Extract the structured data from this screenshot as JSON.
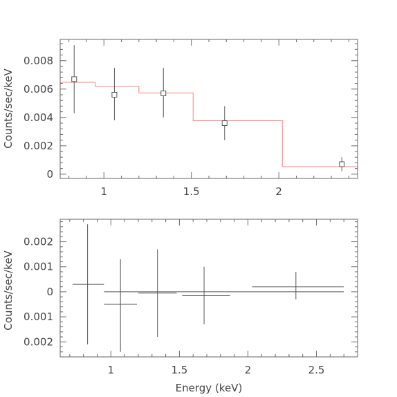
{
  "chart_data": [
    {
      "type": "step-with-errorbars",
      "xlim": [
        0.75,
        2.45
      ],
      "ylim": [
        -0.0003,
        0.0095
      ],
      "x_ticks": [
        1,
        1.5,
        2
      ],
      "x_tick_labels": [
        "1",
        "1.5",
        "2"
      ],
      "y_ticks": [
        0,
        0.002,
        0.004,
        0.006,
        0.008
      ],
      "y_tick_labels": [
        "0",
        "0.002",
        "0.004",
        "0.006",
        "0.008"
      ],
      "ylabel": "Counts/sec/keV",
      "xlabel": "",
      "model_color": "#ff8080",
      "data_color": "#555555",
      "model_steps": [
        {
          "x0": 0.75,
          "x1": 0.95,
          "y": 0.00648
        },
        {
          "x0": 0.95,
          "x1": 1.2,
          "y": 0.00618
        },
        {
          "x0": 1.2,
          "x1": 1.51,
          "y": 0.00573
        },
        {
          "x0": 1.51,
          "x1": 2.02,
          "y": 0.00378
        },
        {
          "x0": 2.02,
          "x1": 2.45,
          "y": 0.00053
        }
      ],
      "data_points": [
        {
          "x": 0.83,
          "y": 0.0067,
          "ylo": 0.0043,
          "yhi": 0.0091
        },
        {
          "x": 1.06,
          "y": 0.0056,
          "ylo": 0.0038,
          "yhi": 0.0075
        },
        {
          "x": 1.34,
          "y": 0.0057,
          "ylo": 0.004,
          "yhi": 0.0075
        },
        {
          "x": 1.69,
          "y": 0.0036,
          "ylo": 0.0024,
          "yhi": 0.0048
        },
        {
          "x": 2.36,
          "y": 0.0007,
          "ylo": 0.0002,
          "yhi": 0.0012
        }
      ]
    },
    {
      "type": "residuals",
      "xlim": [
        0.63,
        2.8
      ],
      "ylim": [
        -0.0026,
        0.0029
      ],
      "x_ticks": [
        1,
        1.5,
        2,
        2.5
      ],
      "x_tick_labels": [
        "1",
        "1.5",
        "2",
        "2.5"
      ],
      "y_ticks": [
        -0.002,
        -0.001,
        0,
        0.001,
        0.002
      ],
      "y_tick_labels": [
        "0.002",
        "0.001",
        "0",
        "0.001",
        "0.002"
      ],
      "ylabel": "Counts/sec/keV",
      "xlabel": "Energy (keV)",
      "zero_line": 0,
      "data_color": "#555555",
      "residuals": [
        {
          "x": 0.83,
          "xlo": 0.72,
          "xhi": 0.95,
          "y": 0.0003,
          "ylo": -0.0021,
          "yhi": 0.0027
        },
        {
          "x": 1.07,
          "xlo": 0.95,
          "xhi": 1.19,
          "y": -0.0005,
          "ylo": -0.0024,
          "yhi": 0.0013
        },
        {
          "x": 1.34,
          "xlo": 1.2,
          "xhi": 1.48,
          "y": -5e-05,
          "ylo": -0.0018,
          "yhi": 0.0017
        },
        {
          "x": 1.68,
          "xlo": 1.52,
          "xhi": 1.87,
          "y": -0.00015,
          "ylo": -0.0013,
          "yhi": 0.001
        },
        {
          "x": 2.35,
          "xlo": 2.03,
          "xhi": 2.7,
          "y": 0.0002,
          "ylo": -0.0003,
          "yhi": 0.0008
        }
      ]
    }
  ]
}
